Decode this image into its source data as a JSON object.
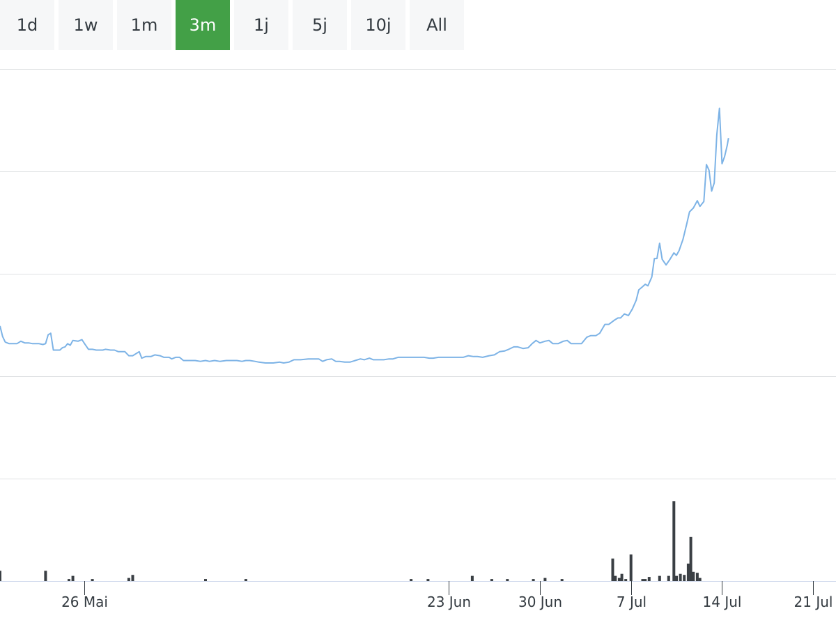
{
  "range_selector": {
    "buttons": [
      {
        "label": "1d",
        "active": false
      },
      {
        "label": "1w",
        "active": false
      },
      {
        "label": "1m",
        "active": false
      },
      {
        "label": "3m",
        "active": true
      },
      {
        "label": "1j",
        "active": false
      },
      {
        "label": "5j",
        "active": false
      },
      {
        "label": "10j",
        "active": false
      },
      {
        "label": "All",
        "active": false
      }
    ],
    "active_color": "#43a047"
  },
  "chart_data": {
    "type": "line",
    "line_color": "#7db3e6",
    "volume_color": "#3a3f44",
    "grid": true,
    "x_ticks": [
      {
        "label": "26 Mai",
        "day": 0
      },
      {
        "label": "23 Jun",
        "day": 28
      },
      {
        "label": "30 Jun",
        "day": 35
      },
      {
        "label": "7 Jul",
        "day": 42
      },
      {
        "label": "14 Jul",
        "day": 49
      },
      {
        "label": "21 Jul",
        "day": 56
      }
    ],
    "xlim": [
      -6.5,
      57.6
    ],
    "ylim": [
      0,
      5.1
    ],
    "price": [
      [
        -6.5,
        1.9
      ],
      [
        -6.3,
        1.77
      ],
      [
        -6.1,
        1.7
      ],
      [
        -5.8,
        1.68
      ],
      [
        -5.2,
        1.68
      ],
      [
        -4.9,
        1.71
      ],
      [
        -4.6,
        1.69
      ],
      [
        -4.3,
        1.69
      ],
      [
        -4.0,
        1.68
      ],
      [
        -3.5,
        1.68
      ],
      [
        -3.2,
        1.67
      ],
      [
        -3.0,
        1.68
      ],
      [
        -2.8,
        1.79
      ],
      [
        -2.6,
        1.81
      ],
      [
        -2.4,
        1.6
      ],
      [
        -1.9,
        1.6
      ],
      [
        -1.7,
        1.63
      ],
      [
        -1.5,
        1.64
      ],
      [
        -1.3,
        1.68
      ],
      [
        -1.1,
        1.66
      ],
      [
        -0.9,
        1.72
      ],
      [
        -0.5,
        1.71
      ],
      [
        -0.2,
        1.73
      ],
      [
        0.0,
        1.68
      ],
      [
        0.3,
        1.61
      ],
      [
        0.6,
        1.61
      ],
      [
        0.9,
        1.6
      ],
      [
        1.4,
        1.6
      ],
      [
        1.6,
        1.61
      ],
      [
        2.0,
        1.6
      ],
      [
        2.3,
        1.6
      ],
      [
        2.6,
        1.58
      ],
      [
        3.1,
        1.58
      ],
      [
        3.4,
        1.53
      ],
      [
        3.7,
        1.53
      ],
      [
        4.2,
        1.58
      ],
      [
        4.4,
        1.5
      ],
      [
        4.7,
        1.52
      ],
      [
        5.1,
        1.52
      ],
      [
        5.4,
        1.54
      ],
      [
        5.8,
        1.53
      ],
      [
        6.1,
        1.51
      ],
      [
        6.5,
        1.51
      ],
      [
        6.7,
        1.49
      ],
      [
        7.0,
        1.51
      ],
      [
        7.3,
        1.51
      ],
      [
        7.6,
        1.47
      ],
      [
        8.2,
        1.47
      ],
      [
        8.5,
        1.47
      ],
      [
        8.9,
        1.46
      ],
      [
        9.3,
        1.47
      ],
      [
        9.6,
        1.46
      ],
      [
        10.0,
        1.47
      ],
      [
        10.4,
        1.46
      ],
      [
        10.9,
        1.47
      ],
      [
        11.3,
        1.47
      ],
      [
        11.7,
        1.47
      ],
      [
        12.1,
        1.46
      ],
      [
        12.4,
        1.47
      ],
      [
        12.7,
        1.47
      ],
      [
        13.1,
        1.46
      ],
      [
        13.4,
        1.45
      ],
      [
        13.9,
        1.44
      ],
      [
        14.5,
        1.44
      ],
      [
        15.0,
        1.45
      ],
      [
        15.3,
        1.44
      ],
      [
        15.7,
        1.45
      ],
      [
        16.1,
        1.48
      ],
      [
        16.6,
        1.48
      ],
      [
        17.2,
        1.49
      ],
      [
        17.6,
        1.49
      ],
      [
        18.0,
        1.49
      ],
      [
        18.3,
        1.46
      ],
      [
        18.6,
        1.48
      ],
      [
        19.0,
        1.49
      ],
      [
        19.3,
        1.46
      ],
      [
        19.6,
        1.46
      ],
      [
        20.0,
        1.45
      ],
      [
        20.4,
        1.45
      ],
      [
        20.8,
        1.47
      ],
      [
        21.2,
        1.49
      ],
      [
        21.5,
        1.48
      ],
      [
        21.9,
        1.5
      ],
      [
        22.2,
        1.48
      ],
      [
        22.6,
        1.48
      ],
      [
        23.0,
        1.48
      ],
      [
        23.4,
        1.49
      ],
      [
        23.7,
        1.49
      ],
      [
        24.1,
        1.51
      ],
      [
        24.6,
        1.51
      ],
      [
        25.0,
        1.51
      ],
      [
        25.3,
        1.51
      ],
      [
        25.7,
        1.51
      ],
      [
        26.1,
        1.51
      ],
      [
        26.5,
        1.5
      ],
      [
        26.8,
        1.5
      ],
      [
        27.2,
        1.51
      ],
      [
        27.5,
        1.51
      ],
      [
        28.0,
        1.51
      ],
      [
        28.3,
        1.51
      ],
      [
        28.7,
        1.51
      ],
      [
        29.1,
        1.51
      ],
      [
        29.5,
        1.53
      ],
      [
        29.9,
        1.52
      ],
      [
        30.2,
        1.52
      ],
      [
        30.6,
        1.51
      ],
      [
        31.1,
        1.53
      ],
      [
        31.5,
        1.54
      ],
      [
        31.9,
        1.58
      ],
      [
        32.3,
        1.59
      ],
      [
        32.6,
        1.61
      ],
      [
        33.0,
        1.64
      ],
      [
        33.3,
        1.64
      ],
      [
        33.7,
        1.62
      ],
      [
        34.1,
        1.63
      ],
      [
        34.4,
        1.68
      ],
      [
        34.7,
        1.72
      ],
      [
        35.0,
        1.69
      ],
      [
        35.4,
        1.71
      ],
      [
        35.7,
        1.72
      ],
      [
        36.0,
        1.68
      ],
      [
        36.4,
        1.68
      ],
      [
        36.8,
        1.71
      ],
      [
        37.1,
        1.72
      ],
      [
        37.4,
        1.68
      ],
      [
        37.9,
        1.68
      ],
      [
        38.2,
        1.68
      ],
      [
        38.6,
        1.76
      ],
      [
        38.9,
        1.78
      ],
      [
        39.3,
        1.78
      ],
      [
        39.6,
        1.81
      ],
      [
        40.0,
        1.92
      ],
      [
        40.3,
        1.92
      ],
      [
        40.7,
        1.97
      ],
      [
        41.0,
        2.0
      ],
      [
        41.2,
        2.0
      ],
      [
        41.5,
        2.05
      ],
      [
        41.8,
        2.03
      ],
      [
        42.1,
        2.11
      ],
      [
        42.4,
        2.22
      ],
      [
        42.6,
        2.35
      ],
      [
        42.9,
        2.39
      ],
      [
        43.1,
        2.42
      ],
      [
        43.3,
        2.4
      ],
      [
        43.6,
        2.51
      ],
      [
        43.8,
        2.74
      ],
      [
        44.0,
        2.74
      ],
      [
        44.2,
        2.93
      ],
      [
        44.4,
        2.73
      ],
      [
        44.7,
        2.66
      ],
      [
        45.0,
        2.73
      ],
      [
        45.3,
        2.81
      ],
      [
        45.5,
        2.78
      ],
      [
        45.7,
        2.84
      ],
      [
        46.0,
        2.98
      ],
      [
        46.3,
        3.18
      ],
      [
        46.5,
        3.32
      ],
      [
        46.8,
        3.37
      ],
      [
        47.1,
        3.46
      ],
      [
        47.3,
        3.39
      ],
      [
        47.6,
        3.45
      ],
      [
        47.8,
        3.91
      ],
      [
        48.0,
        3.84
      ],
      [
        48.2,
        3.58
      ],
      [
        48.4,
        3.68
      ],
      [
        48.6,
        4.28
      ],
      [
        48.8,
        4.61
      ],
      [
        49.0,
        3.92
      ],
      [
        49.2,
        4.01
      ],
      [
        49.4,
        4.15
      ],
      [
        49.5,
        4.24
      ]
    ],
    "volume": [
      [
        -6.5,
        0.1
      ],
      [
        -3.0,
        0.1
      ],
      [
        -1.2,
        0.02
      ],
      [
        -0.9,
        0.05
      ],
      [
        0.6,
        0.02
      ],
      [
        3.4,
        0.03
      ],
      [
        3.7,
        0.06
      ],
      [
        9.3,
        0.02
      ],
      [
        12.4,
        0.02
      ],
      [
        25.1,
        0.02
      ],
      [
        26.4,
        0.02
      ],
      [
        29.8,
        0.05
      ],
      [
        31.3,
        0.02
      ],
      [
        32.5,
        0.02
      ],
      [
        34.5,
        0.02
      ],
      [
        35.4,
        0.03
      ],
      [
        36.7,
        0.02
      ],
      [
        40.6,
        0.22
      ],
      [
        40.8,
        0.05
      ],
      [
        41.1,
        0.03
      ],
      [
        41.3,
        0.07
      ],
      [
        41.6,
        0.02
      ],
      [
        42.0,
        0.26
      ],
      [
        42.9,
        0.02
      ],
      [
        43.1,
        0.02
      ],
      [
        43.4,
        0.04
      ],
      [
        44.2,
        0.05
      ],
      [
        44.9,
        0.05
      ],
      [
        45.3,
        0.78
      ],
      [
        45.5,
        0.05
      ],
      [
        45.8,
        0.07
      ],
      [
        46.1,
        0.06
      ],
      [
        46.4,
        0.17
      ],
      [
        46.6,
        0.43
      ],
      [
        46.8,
        0.09
      ],
      [
        47.1,
        0.08
      ],
      [
        47.3,
        0.03
      ]
    ]
  }
}
